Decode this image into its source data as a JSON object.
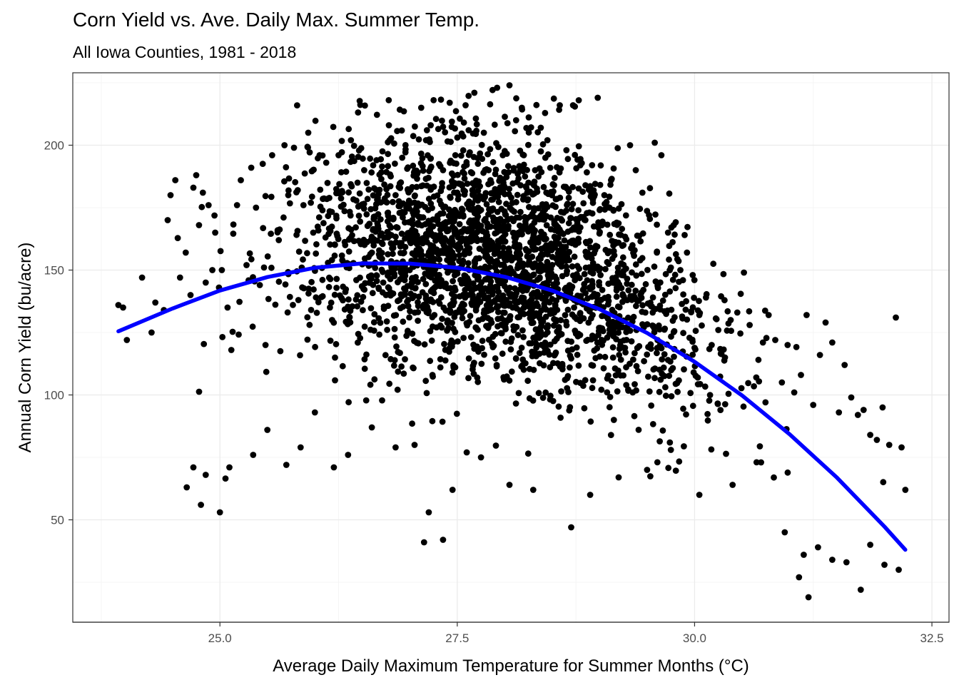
{
  "chart_data": {
    "type": "scatter",
    "title": "Corn Yield vs. Ave. Daily Max. Summer Temp.",
    "subtitle": "All Iowa Counties, 1981 - 2018",
    "xlabel": "Average Daily Maximum Temperature for Summer Months (°C)",
    "ylabel": "Annual Corn Yield (bu/acre)",
    "xlim": [
      23.45,
      32.68
    ],
    "ylim": [
      9.0,
      229.0
    ],
    "x_ticks": [
      25.0,
      27.5,
      30.0,
      32.5
    ],
    "x_tick_labels": [
      "25.0",
      "27.5",
      "30.0",
      "32.5"
    ],
    "y_ticks": [
      50,
      100,
      150,
      200
    ],
    "y_tick_labels": [
      "50",
      "100",
      "150",
      "200"
    ],
    "grid": true,
    "legend": "none",
    "colors": {
      "points": "#000000",
      "fit_line": "#0000ff",
      "grid_major": "#ebebeb",
      "grid_minor": "#f5f5f5",
      "panel_border": "#333333"
    },
    "series": [
      {
        "type": "scatter",
        "x": [
          23.93,
          23.98,
          24.02,
          24.18,
          24.28,
          24.32,
          24.41,
          24.45,
          24.48,
          24.53,
          24.58,
          24.64,
          24.69,
          24.72,
          24.75,
          24.78,
          24.82,
          24.85,
          24.88,
          24.92,
          24.95,
          24.99,
          25.02,
          25.08,
          25.12,
          25.18,
          25.22,
          25.28,
          25.33,
          25.38,
          25.42,
          25.48,
          25.55,
          25.62,
          25.68,
          25.72,
          25.78,
          25.82,
          25.88,
          25.93,
          25.98,
          26.05,
          26.12,
          26.18,
          26.25,
          26.32,
          26.38,
          26.45,
          26.52,
          26.58,
          26.65,
          26.72,
          26.78,
          26.85,
          26.92,
          26.98,
          27.05,
          27.12,
          27.18,
          27.22,
          27.28,
          27.35,
          27.42,
          27.48,
          27.55,
          27.62,
          27.68,
          27.72,
          27.78,
          27.85,
          27.92,
          27.98,
          28.05,
          28.12,
          28.18,
          28.25,
          28.32,
          28.38,
          28.45,
          28.52,
          28.58,
          28.65,
          28.72,
          28.78,
          28.85,
          28.92,
          28.98,
          29.05,
          29.12,
          29.18,
          29.25,
          29.32,
          29.38,
          29.45,
          29.52,
          29.58,
          29.65,
          29.72,
          29.78,
          29.85,
          29.92,
          29.98,
          30.05,
          30.12,
          30.18,
          30.25,
          30.32,
          30.38,
          30.45,
          30.52,
          30.58,
          30.65,
          30.72,
          30.78,
          30.85,
          30.92,
          30.98,
          31.05,
          31.12,
          31.18,
          31.25,
          31.32,
          31.38,
          31.45,
          31.52,
          31.58,
          31.65,
          31.72,
          31.78,
          31.85,
          31.92,
          31.98,
          32.05,
          32.12,
          32.18,
          32.22
        ],
        "y": [
          136,
          135,
          122,
          147,
          125,
          137,
          134,
          170,
          180,
          186,
          147,
          157,
          140,
          183,
          188,
          168,
          181,
          145,
          176,
          150,
          165,
          143,
          150,
          135,
          118,
          176,
          186,
          152,
          191,
          175,
          144,
          120,
          196,
          162,
          200,
          180,
          199,
          182,
          176,
          205,
          190,
          196,
          193,
          154,
          196,
          160,
          202,
          185,
          190,
          152,
          194,
          145,
          208,
          180,
          195,
          182,
          177,
          215,
          206,
          208,
          170,
          190,
          217,
          196,
          184,
          206,
          221,
          175,
          205,
          186,
          223,
          196,
          224,
          210,
          215,
          185,
          190,
          207,
          202,
          184,
          216,
          198,
          216,
          218,
          170,
          192,
          219,
          180,
          186,
          169,
          160,
          200,
          190,
          181,
          172,
          201,
          196,
          165,
          168,
          150,
          157,
          148,
          132,
          139,
          120,
          126,
          115,
          130,
          133,
          149,
          128,
          107,
          121,
          132,
          122,
          105,
          120,
          101,
          108,
          132,
          96,
          116,
          129,
          121,
          93,
          112,
          99,
          92,
          94,
          84,
          82,
          95,
          80,
          131,
          79,
          62
        ]
      },
      {
        "type": "scatter_extra",
        "x": [
          24.65,
          24.72,
          24.8,
          24.85,
          25.0,
          25.1,
          25.35,
          25.5,
          25.7,
          25.85,
          26.0,
          26.2,
          26.35,
          26.6,
          26.85,
          27.05,
          27.15,
          27.2,
          27.35,
          27.45,
          27.6,
          27.75,
          28.05,
          28.3,
          28.7,
          28.9,
          29.2,
          29.5,
          29.75,
          30.05,
          30.4,
          30.7,
          30.95,
          31.1,
          31.15,
          31.2,
          31.3,
          31.45,
          31.6,
          31.75,
          31.85,
          32.0,
          32.15
        ],
        "y": [
          63,
          71,
          56,
          68,
          53,
          71,
          76,
          86,
          72,
          79,
          93,
          71,
          76,
          87,
          79,
          80,
          41,
          53,
          42,
          62,
          77,
          75,
          64,
          62,
          47,
          60,
          67,
          70,
          78,
          60,
          64,
          73,
          45,
          27,
          36,
          19,
          39,
          34,
          33,
          22,
          40,
          32,
          30
        ]
      },
      {
        "type": "fit_line",
        "name": "",
        "x": [
          23.93,
          24.5,
          25.0,
          25.5,
          26.0,
          26.5,
          27.0,
          27.5,
          28.0,
          28.5,
          29.0,
          29.5,
          30.0,
          30.5,
          31.0,
          31.5,
          32.0,
          32.22
        ],
        "y": [
          125.5,
          134.6,
          141.8,
          147.2,
          150.9,
          152.7,
          152.6,
          150.9,
          147.3,
          141.8,
          134.3,
          124.8,
          113.3,
          99.8,
          84.3,
          66.9,
          47.3,
          38.0
        ]
      }
    ]
  }
}
